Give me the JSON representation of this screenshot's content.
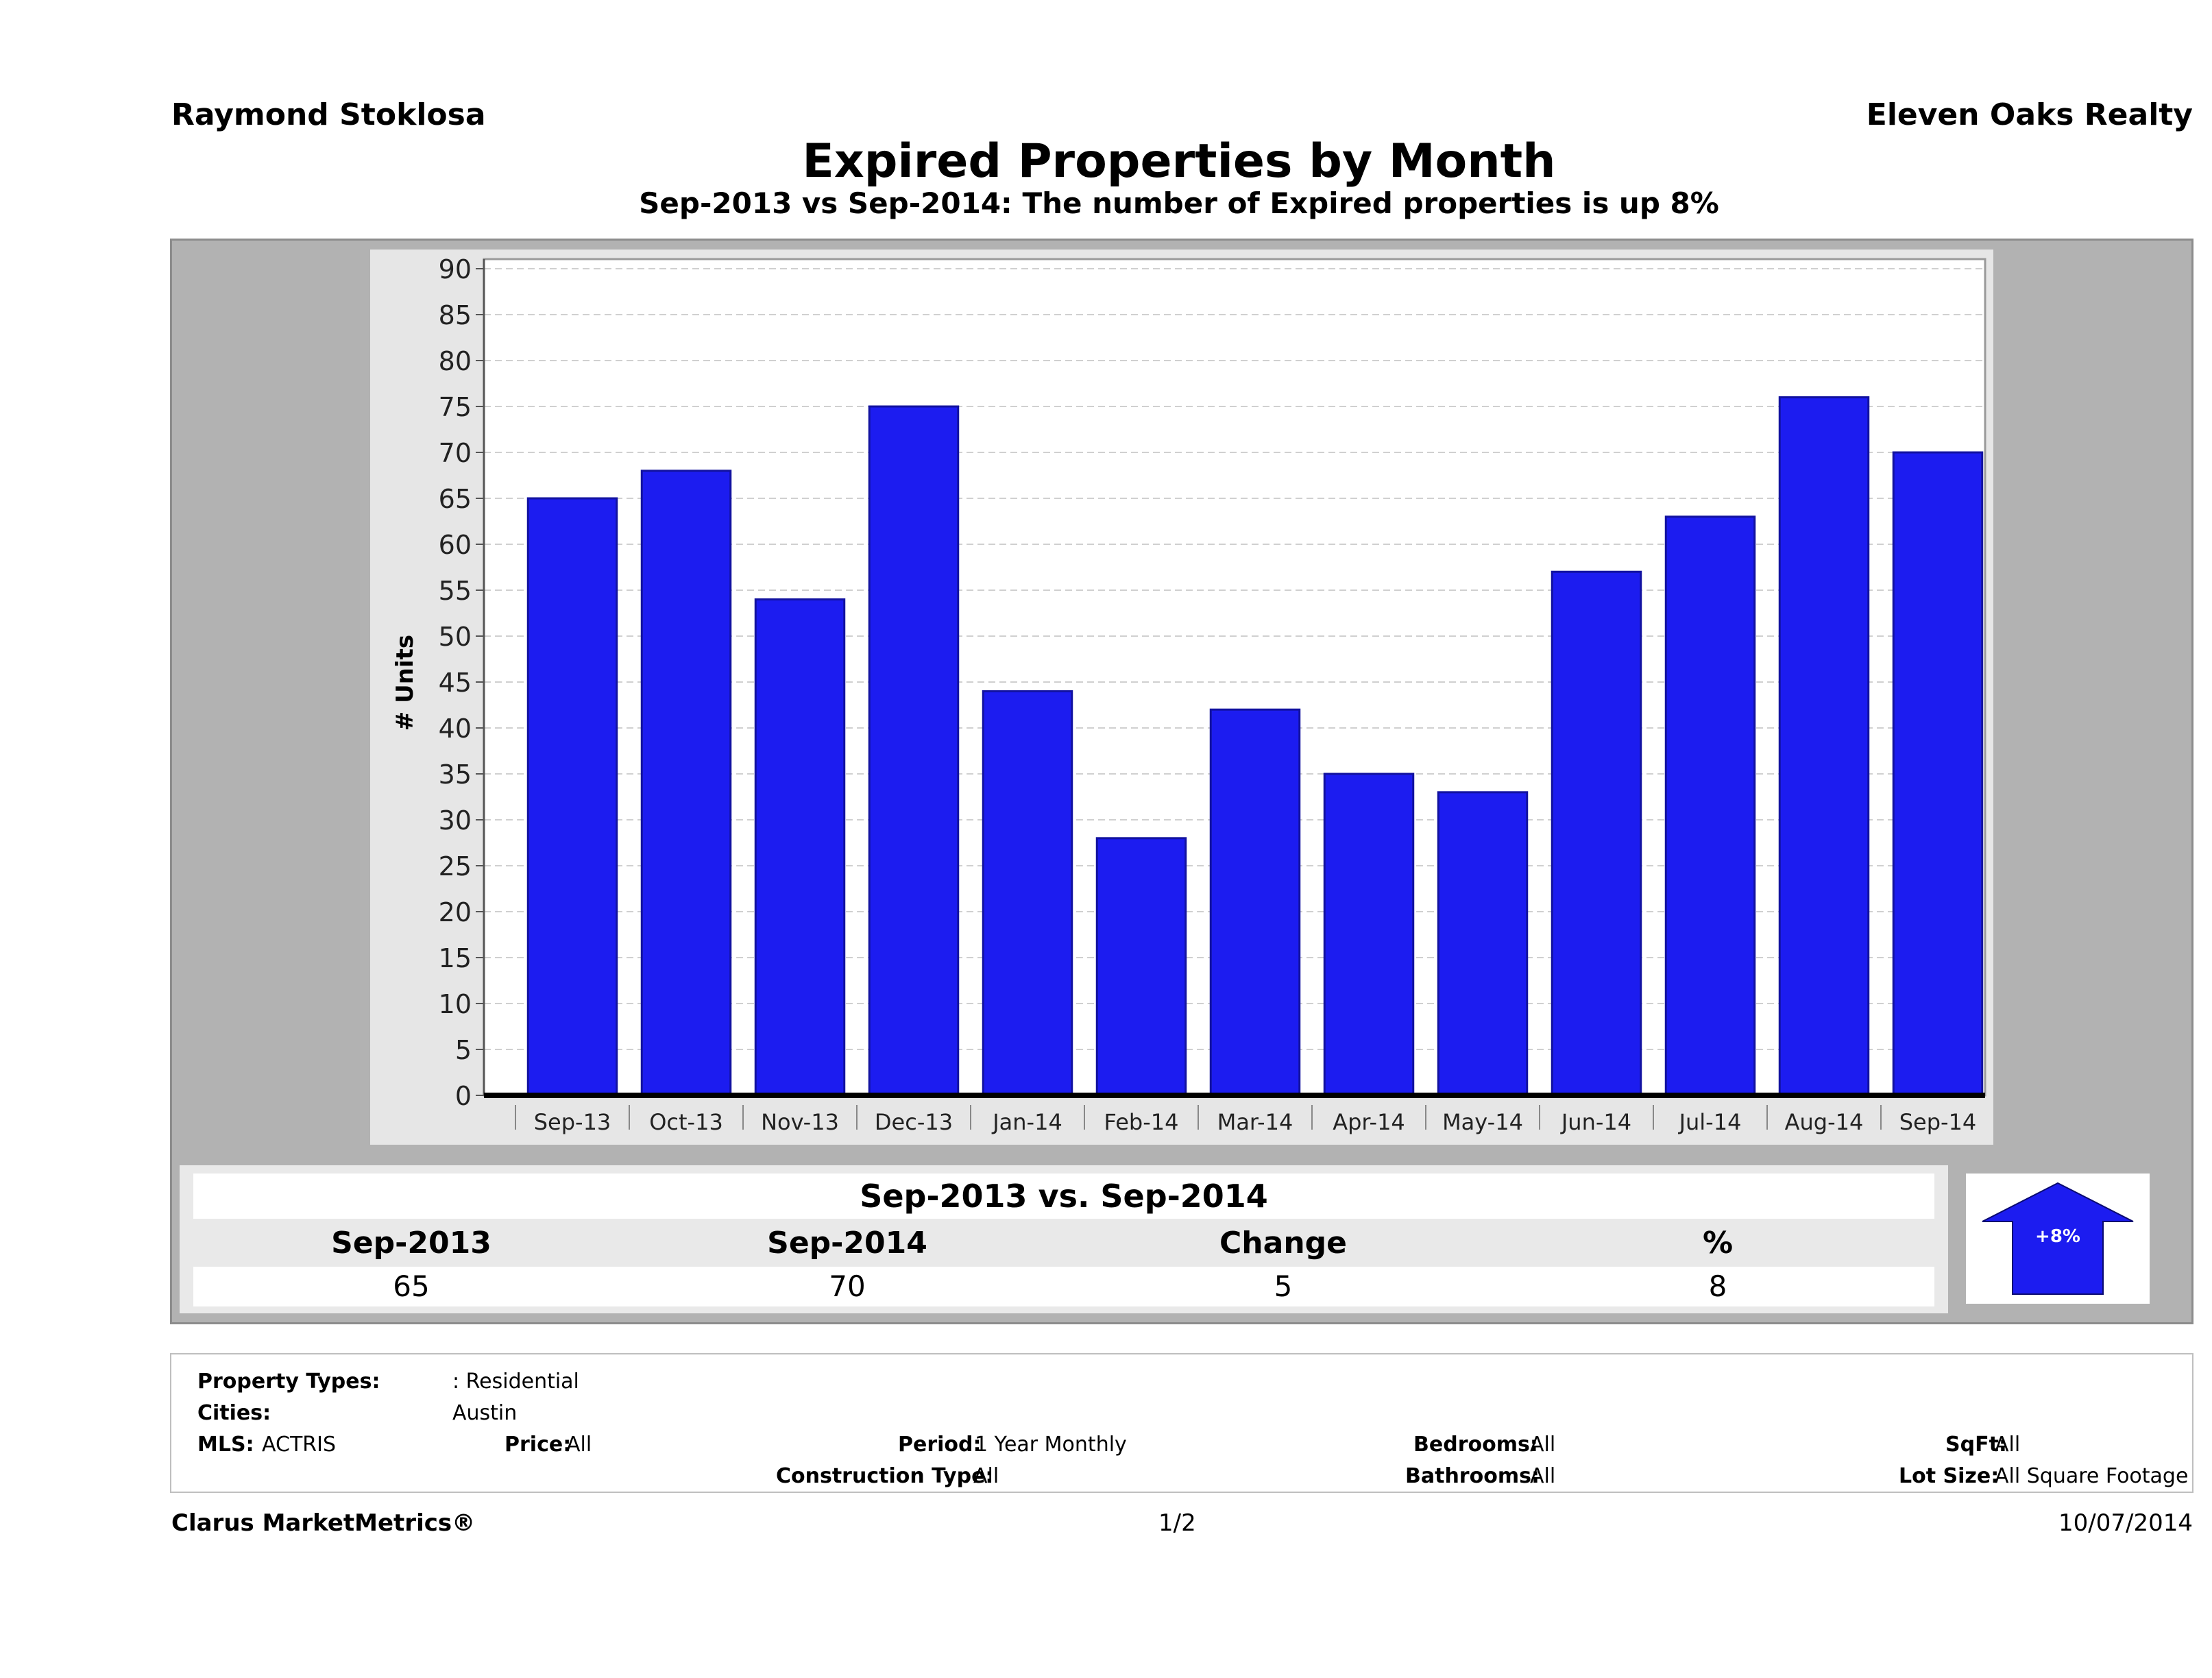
{
  "header": {
    "agent": "Raymond Stoklosa",
    "company": "Eleven Oaks Realty"
  },
  "chart_data": {
    "type": "bar",
    "title": "Expired Properties by Month",
    "subtitle": "Sep-2013 vs Sep-2014: The number of Expired  properties is up 8%",
    "xlabel": "",
    "ylabel": "# Units",
    "ylim": [
      0,
      90
    ],
    "yticks": [
      "0",
      "5",
      "10",
      "15",
      "20",
      "25",
      "30",
      "35",
      "40",
      "45",
      "50",
      "55",
      "60",
      "65",
      "70",
      "75",
      "80",
      "85",
      "90"
    ],
    "categories": [
      "Sep-13",
      "Oct-13",
      "Nov-13",
      "Dec-13",
      "Jan-14",
      "Feb-14",
      "Mar-14",
      "Apr-14",
      "May-14",
      "Jun-14",
      "Jul-14",
      "Aug-14",
      "Sep-14"
    ],
    "values": [
      65,
      68,
      54,
      75,
      44,
      28,
      42,
      35,
      33,
      57,
      63,
      76,
      70
    ],
    "bar_color": "#1c1cf0",
    "grid": true
  },
  "summary": {
    "title": "Sep-2013 vs. Sep-2014",
    "headers": [
      "Sep-2013",
      "Sep-2014",
      "Change",
      "%"
    ],
    "values": [
      "65",
      "70",
      "5",
      "8"
    ],
    "badge": "+8%",
    "badge_color": "#1c1cf0"
  },
  "filters": {
    "property_types_label": "Property Types:",
    "property_types_value": ": Residential",
    "cities_label": "Cities:",
    "cities_value": "Austin",
    "mls_label": "MLS:",
    "mls_value": "ACTRIS",
    "price_label": "Price:",
    "price_value": "All",
    "period_label": "Period:",
    "period_value": "1 Year Monthly",
    "construction_label": "Construction Type:",
    "construction_value": "All",
    "bedrooms_label": "Bedrooms:",
    "bedrooms_value": "All",
    "bathrooms_label": "Bathrooms:",
    "bathrooms_value": "All",
    "sqft_label": "SqFt:",
    "sqft_value": "All",
    "lot_label": "Lot Size:",
    "lot_value": "All Square Footage"
  },
  "footer": {
    "brand": "Clarus MarketMetrics®",
    "page": "1/2",
    "date": "10/07/2014"
  }
}
